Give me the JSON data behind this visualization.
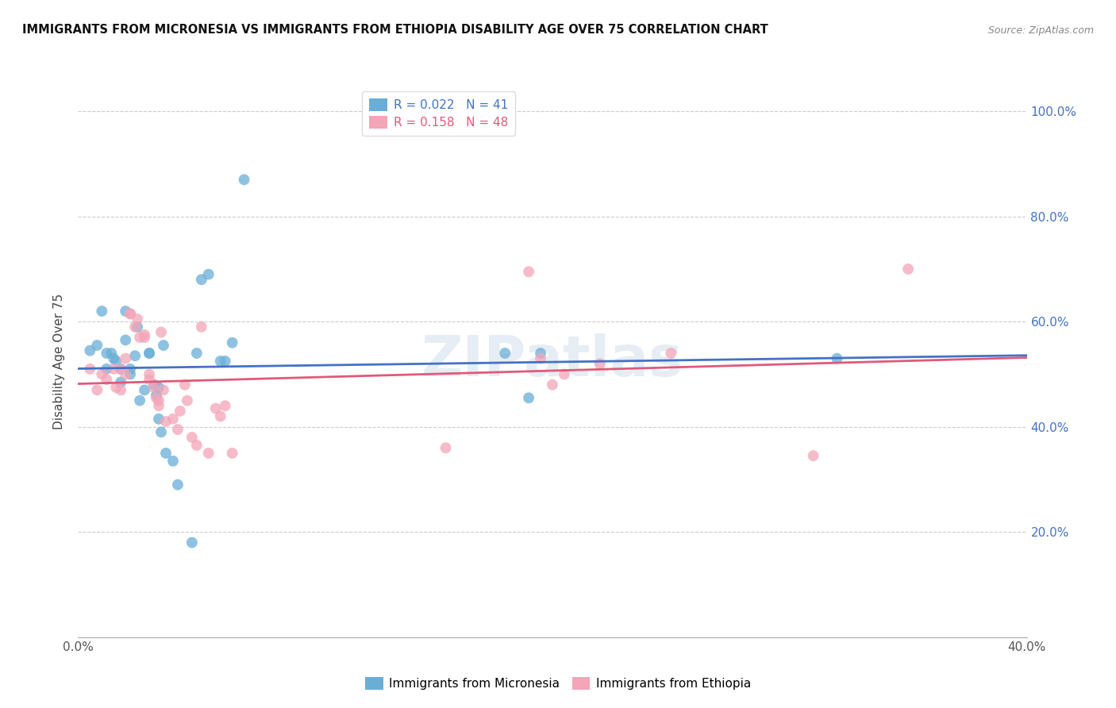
{
  "title": "IMMIGRANTS FROM MICRONESIA VS IMMIGRANTS FROM ETHIOPIA DISABILITY AGE OVER 75 CORRELATION CHART",
  "source": "Source: ZipAtlas.com",
  "ylabel": "Disability Age Over 75",
  "xlim": [
    0.0,
    0.4
  ],
  "ylim": [
    0.0,
    1.05
  ],
  "legend_r_blue": "0.022",
  "legend_n_blue": "41",
  "legend_r_pink": "0.158",
  "legend_n_pink": "48",
  "legend_label_blue": "Immigrants from Micronesia",
  "legend_label_pink": "Immigrants from Ethiopia",
  "blue_color": "#6aaed6",
  "pink_color": "#f4a5b8",
  "trend_blue": "#4472c4",
  "trend_pink": "#e05a7a",
  "blue_x": [
    0.005,
    0.008,
    0.01,
    0.012,
    0.012,
    0.014,
    0.015,
    0.016,
    0.018,
    0.018,
    0.02,
    0.02,
    0.022,
    0.022,
    0.024,
    0.025,
    0.026,
    0.028,
    0.03,
    0.03,
    0.032,
    0.033,
    0.034,
    0.034,
    0.035,
    0.036,
    0.037,
    0.04,
    0.042,
    0.048,
    0.05,
    0.052,
    0.055,
    0.06,
    0.062,
    0.065,
    0.07,
    0.18,
    0.19,
    0.195,
    0.32
  ],
  "blue_y": [
    0.545,
    0.555,
    0.62,
    0.54,
    0.51,
    0.54,
    0.53,
    0.525,
    0.51,
    0.485,
    0.62,
    0.565,
    0.5,
    0.51,
    0.535,
    0.59,
    0.45,
    0.47,
    0.54,
    0.54,
    0.48,
    0.46,
    0.415,
    0.475,
    0.39,
    0.555,
    0.35,
    0.335,
    0.29,
    0.18,
    0.54,
    0.68,
    0.69,
    0.525,
    0.525,
    0.56,
    0.87,
    0.54,
    0.455,
    0.54,
    0.53
  ],
  "pink_x": [
    0.005,
    0.008,
    0.01,
    0.012,
    0.015,
    0.016,
    0.018,
    0.018,
    0.02,
    0.02,
    0.022,
    0.022,
    0.024,
    0.025,
    0.026,
    0.028,
    0.028,
    0.03,
    0.03,
    0.032,
    0.033,
    0.034,
    0.034,
    0.035,
    0.036,
    0.037,
    0.04,
    0.042,
    0.043,
    0.045,
    0.046,
    0.048,
    0.05,
    0.052,
    0.055,
    0.058,
    0.06,
    0.062,
    0.065,
    0.155,
    0.19,
    0.195,
    0.2,
    0.205,
    0.22,
    0.25,
    0.31,
    0.35
  ],
  "pink_y": [
    0.51,
    0.47,
    0.5,
    0.49,
    0.51,
    0.475,
    0.47,
    0.51,
    0.5,
    0.53,
    0.615,
    0.615,
    0.59,
    0.605,
    0.57,
    0.57,
    0.575,
    0.5,
    0.49,
    0.475,
    0.455,
    0.44,
    0.45,
    0.58,
    0.47,
    0.41,
    0.415,
    0.395,
    0.43,
    0.48,
    0.45,
    0.38,
    0.365,
    0.59,
    0.35,
    0.435,
    0.42,
    0.44,
    0.35,
    0.36,
    0.695,
    0.53,
    0.48,
    0.5,
    0.52,
    0.54,
    0.345,
    0.7
  ]
}
